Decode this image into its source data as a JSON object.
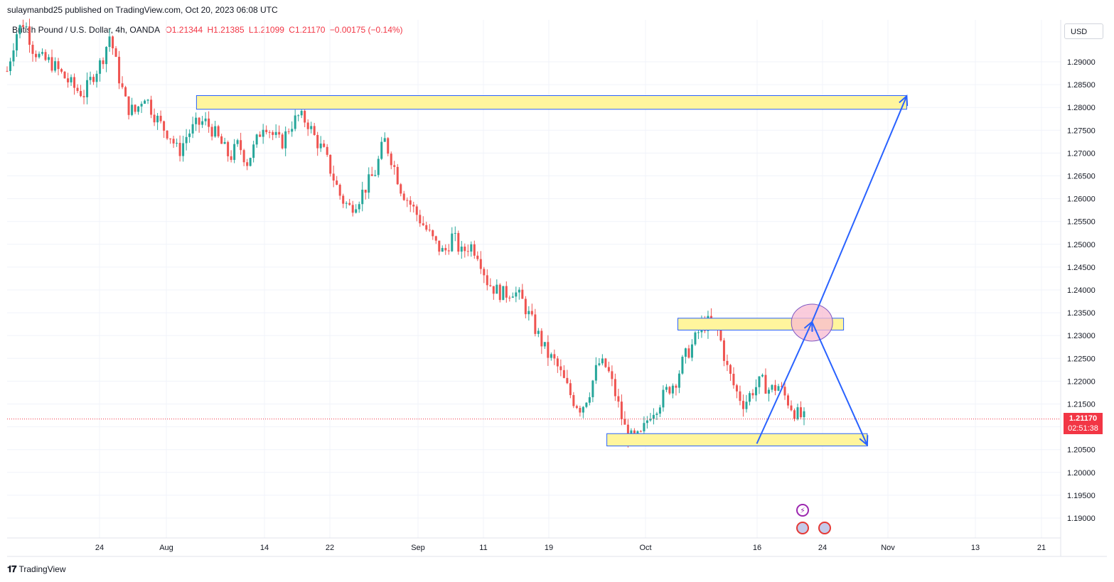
{
  "header": {
    "published": "sulaymanbd25 published on TradingView.com, Oct 20, 2023 06:08 UTC"
  },
  "legend": {
    "symbol": "British Pound / U.S. Dollar, 4h, OANDA",
    "open": "O1.21344",
    "high": "H1.21385",
    "low": "L1.21099",
    "close": "C1.21170",
    "change": "−0.00175 (−0.14%)"
  },
  "currency_button": "USD",
  "price_tag": {
    "price": "1.21170",
    "countdown": "02:51:38"
  },
  "footer": {
    "brand": "TradingView"
  },
  "colors": {
    "up": "#26a69a",
    "down": "#ef5350",
    "zone_fill": "#fff59d",
    "zone_border": "#2962ff",
    "arrow": "#2962ff",
    "circle": "#f8bbd0"
  },
  "chart_data": {
    "type": "candlestick",
    "title": "British Pound / U.S. Dollar, 4h, OANDA",
    "y_axis": {
      "ticks": [
        "1.29000",
        "1.28500",
        "1.28000",
        "1.27500",
        "1.27000",
        "1.26500",
        "1.26000",
        "1.25500",
        "1.25000",
        "1.24500",
        "1.24000",
        "1.23500",
        "1.23000",
        "1.22500",
        "1.22000",
        "1.21500",
        "1.21000",
        "1.20500",
        "1.20000",
        "1.19500",
        "1.19000"
      ],
      "range": [
        1.186,
        1.297
      ]
    },
    "x_axis": {
      "ticks": [
        "24",
        "Aug",
        "14",
        "22",
        "Sep",
        "11",
        "19",
        "Oct",
        "16",
        "24",
        "Nov",
        "13",
        "21"
      ]
    },
    "price_path": [
      [
        0,
        1.288
      ],
      [
        2,
        1.296
      ],
      [
        4,
        1.299
      ],
      [
        6,
        1.293
      ],
      [
        8,
        1.2905
      ],
      [
        10,
        1.29
      ],
      [
        12,
        1.288
      ],
      [
        14,
        1.286
      ],
      [
        16,
        1.284
      ],
      [
        18,
        1.283
      ],
      [
        20,
        1.287
      ],
      [
        22,
        1.29
      ],
      [
        24,
        1.296
      ],
      [
        26,
        1.287
      ],
      [
        28,
        1.28
      ],
      [
        30,
        1.279
      ],
      [
        32,
        1.283
      ],
      [
        34,
        1.279
      ],
      [
        36,
        1.276
      ],
      [
        38,
        1.274
      ],
      [
        40,
        1.27
      ],
      [
        42,
        1.274
      ],
      [
        44,
        1.276
      ],
      [
        46,
        1.277
      ],
      [
        48,
        1.275
      ],
      [
        50,
        1.272
      ],
      [
        52,
        1.269
      ],
      [
        54,
        1.272
      ],
      [
        56,
        1.268
      ],
      [
        58,
        1.272
      ],
      [
        60,
        1.277
      ],
      [
        62,
        1.274
      ],
      [
        64,
        1.272
      ],
      [
        66,
        1.276
      ],
      [
        68,
        1.278
      ],
      [
        70,
        1.277
      ],
      [
        72,
        1.273
      ],
      [
        74,
        1.27
      ],
      [
        76,
        1.265
      ],
      [
        78,
        1.26
      ],
      [
        80,
        1.258
      ],
      [
        82,
        1.26
      ],
      [
        84,
        1.263
      ],
      [
        86,
        1.266
      ],
      [
        88,
        1.273
      ],
      [
        90,
        1.268
      ],
      [
        92,
        1.262
      ],
      [
        94,
        1.259
      ],
      [
        96,
        1.256
      ],
      [
        98,
        1.253
      ],
      [
        100,
        1.25
      ],
      [
        102,
        1.248
      ],
      [
        104,
        1.252
      ],
      [
        106,
        1.248
      ],
      [
        108,
        1.25
      ],
      [
        110,
        1.248
      ],
      [
        112,
        1.242
      ],
      [
        114,
        1.24
      ],
      [
        116,
        1.239
      ],
      [
        118,
        1.24
      ],
      [
        120,
        1.238
      ],
      [
        122,
        1.234
      ],
      [
        124,
        1.23
      ],
      [
        126,
        1.226
      ],
      [
        128,
        1.224
      ],
      [
        130,
        1.22
      ],
      [
        132,
        1.216
      ],
      [
        134,
        1.214
      ],
      [
        136,
        1.218
      ],
      [
        138,
        1.224
      ],
      [
        140,
        1.223
      ],
      [
        142,
        1.217
      ],
      [
        144,
        1.21
      ],
      [
        146,
        1.207
      ],
      [
        148,
        1.208
      ],
      [
        150,
        1.213
      ],
      [
        152,
        1.215
      ],
      [
        154,
        1.218
      ],
      [
        156,
        1.22
      ],
      [
        158,
        1.225
      ],
      [
        160,
        1.228
      ],
      [
        162,
        1.232
      ],
      [
        164,
        1.233
      ],
      [
        166,
        1.231
      ],
      [
        168,
        1.223
      ],
      [
        170,
        1.218
      ],
      [
        172,
        1.215
      ],
      [
        174,
        1.218
      ],
      [
        176,
        1.22
      ],
      [
        178,
        1.218
      ],
      [
        180,
        1.219
      ],
      [
        182,
        1.216
      ],
      [
        184,
        1.213
      ],
      [
        186,
        1.2117
      ]
    ],
    "zones": [
      {
        "from": "Aug 10",
        "to": "Nov 8",
        "high": 1.2826,
        "low": 1.2796
      },
      {
        "from": "Oct 10",
        "to": "Oct 31",
        "high": 1.2338,
        "low": 1.2312
      },
      {
        "from": "Oct 1",
        "to": "Nov 3",
        "high": 1.2085,
        "low": 1.2058
      }
    ],
    "projection_arrows": [
      {
        "from": [
          "Oct 20",
          1.2063
        ],
        "to": [
          "Oct 27",
          1.233
        ]
      },
      {
        "from": [
          "Oct 27",
          1.233
        ],
        "to": [
          "Nov 8",
          1.2825
        ]
      },
      {
        "from": [
          "Oct 27",
          1.233
        ],
        "to": [
          "Nov 3",
          1.206
        ]
      }
    ],
    "current_price": 1.2117
  }
}
